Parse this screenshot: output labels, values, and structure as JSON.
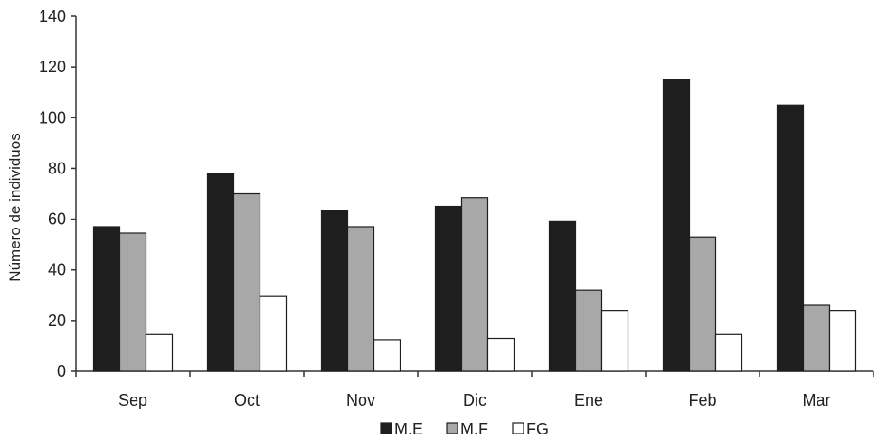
{
  "chart_data": {
    "type": "bar",
    "categories": [
      "Sep",
      "Oct",
      "Nov",
      "Dic",
      "Ene",
      "Feb",
      "Mar"
    ],
    "series": [
      {
        "name": "M.E",
        "color": "#1e1e1e",
        "values": [
          57,
          78,
          63.5,
          65,
          59,
          115,
          105
        ]
      },
      {
        "name": "M.F",
        "color": "#a8a8a8",
        "values": [
          54.5,
          70,
          57,
          68.5,
          32,
          53,
          26
        ]
      },
      {
        "name": "FG",
        "color": "#ffffff",
        "values": [
          14.5,
          29.5,
          12.5,
          13,
          24,
          14.5,
          24
        ]
      }
    ],
    "ylabel": "Número de individuos",
    "ylim": [
      0,
      140
    ],
    "yticks": [
      0,
      20,
      40,
      60,
      80,
      100,
      120,
      140
    ],
    "grid": false,
    "legend_position": "bottom"
  }
}
